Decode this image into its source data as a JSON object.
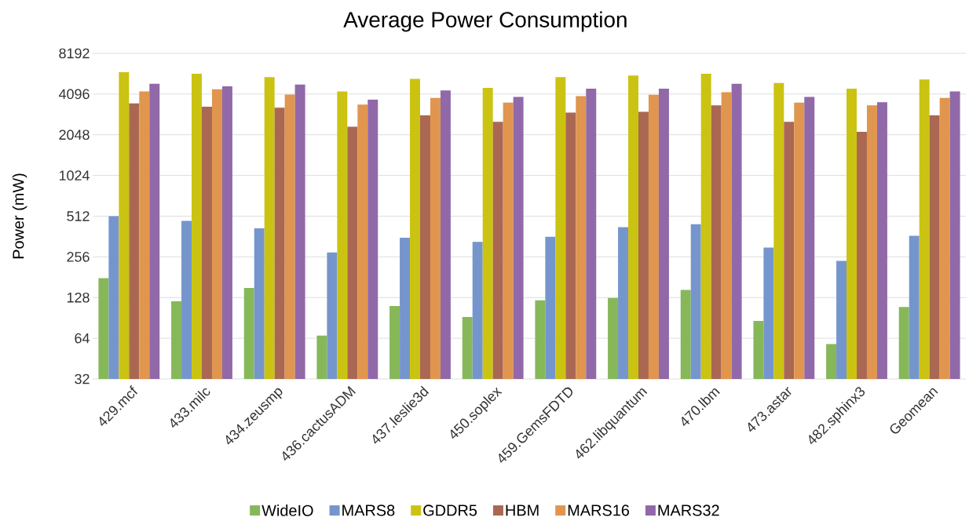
{
  "chart_data": {
    "type": "bar",
    "title": "Average Power Consumption",
    "ylabel": "Power (mW)",
    "categories": [
      "429.mcf",
      "433.milc",
      "434.zeusmp",
      "436.cactusADM",
      "437.leslie3d",
      "450.soplex",
      "459.GemsFDTD",
      "462.libquantum",
      "470.lbm",
      "473.astar",
      "482.sphinx3",
      "Geomean"
    ],
    "series": [
      {
        "name": "WideIO",
        "color": "#86b85a",
        "values": [
          178,
          120,
          151,
          67,
          111,
          92,
          122,
          127,
          146,
          86,
          58,
          109
        ]
      },
      {
        "name": "MARS8",
        "color": "#7596cc",
        "values": [
          512,
          472,
          416,
          276,
          354,
          331,
          361,
          425,
          446,
          300,
          239,
          367
        ]
      },
      {
        "name": "GDDR5",
        "color": "#cbc312",
        "values": [
          5940,
          5790,
          5460,
          4290,
          5310,
          4545,
          5460,
          5610,
          5790,
          4950,
          4485,
          5245
        ]
      },
      {
        "name": "HBM",
        "color": "#aa6853",
        "values": [
          3490,
          3300,
          3250,
          2345,
          2850,
          2555,
          2985,
          3030,
          3385,
          2555,
          2155,
          2850
        ]
      },
      {
        "name": "MARS16",
        "color": "#e0964e",
        "values": [
          4290,
          4450,
          4065,
          3430,
          3840,
          3540,
          3960,
          4050,
          4230,
          3540,
          3385,
          3840
        ]
      },
      {
        "name": "MARS32",
        "color": "#9169a8",
        "values": [
          4880,
          4670,
          4820,
          3730,
          4350,
          3905,
          4485,
          4485,
          4880,
          3905,
          3570,
          4290
        ]
      }
    ],
    "ylim": [
      32,
      8192
    ],
    "yticks": [
      32,
      64,
      128,
      256,
      512,
      1024,
      2048,
      4096,
      8192
    ],
    "log": "y",
    "grid": "y",
    "legend": "bottom"
  }
}
